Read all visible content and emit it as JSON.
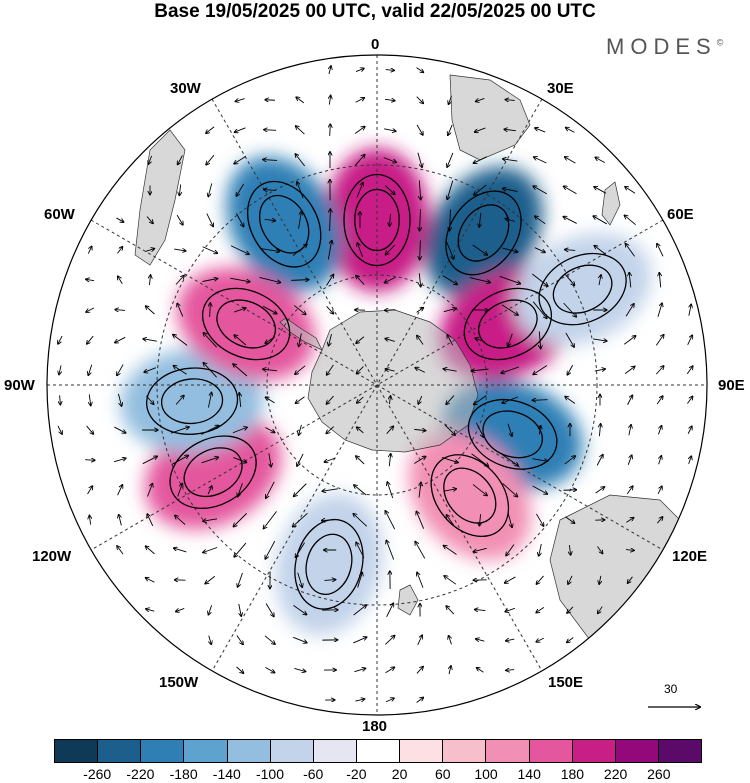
{
  "title": "Base 19/05/2025 00 UTC, valid 22/05/2025 00 UTC",
  "brand": "MODES",
  "brand_mark": "©",
  "longitude_labels": {
    "n0": "0",
    "e30": "30E",
    "e60": "60E",
    "e90": "90E",
    "e120": "120E",
    "e150": "150E",
    "s180": "180",
    "w150": "150W",
    "w120": "120W",
    "w90": "90W",
    "w60": "60W",
    "w30": "30W"
  },
  "vector_scale": "30",
  "colorbar": {
    "colors": [
      "#0f3a57",
      "#1c5f8c",
      "#2f7fb5",
      "#5ea2cf",
      "#93bedf",
      "#c2d3ea",
      "#e6e6f2",
      "#ffffff",
      "#fde0e4",
      "#f7bfcc",
      "#f28fb4",
      "#e4579e",
      "#c81f87",
      "#93087a",
      "#5b0a6a"
    ],
    "tick_labels": [
      "-260",
      "-220",
      "-180",
      "-140",
      "-100",
      "-60",
      "-20",
      "20",
      "60",
      "100",
      "140",
      "180",
      "220",
      "260"
    ]
  },
  "anomaly_centers": [
    {
      "type": "high",
      "value": 200,
      "lon": 0,
      "lat": -50
    },
    {
      "type": "low",
      "value": -260,
      "lon": 35,
      "lat": -45
    },
    {
      "type": "low",
      "value": -200,
      "lon": -30,
      "lat": -45
    },
    {
      "type": "high",
      "value": 180,
      "lon": 65,
      "lat": -55
    },
    {
      "type": "low",
      "value": -100,
      "lon": 65,
      "lat": -35
    },
    {
      "type": "low",
      "value": -200,
      "lon": 110,
      "lat": -55
    },
    {
      "type": "high",
      "value": 100,
      "lon": 140,
      "lat": -55
    },
    {
      "type": "low",
      "value": -100,
      "lon": -165,
      "lat": -45
    },
    {
      "type": "high",
      "value": 140,
      "lon": -118,
      "lat": -45
    },
    {
      "type": "low",
      "value": -140,
      "lon": -95,
      "lat": -45
    },
    {
      "type": "high",
      "value": 140,
      "lon": -65,
      "lat": -55
    }
  ]
}
